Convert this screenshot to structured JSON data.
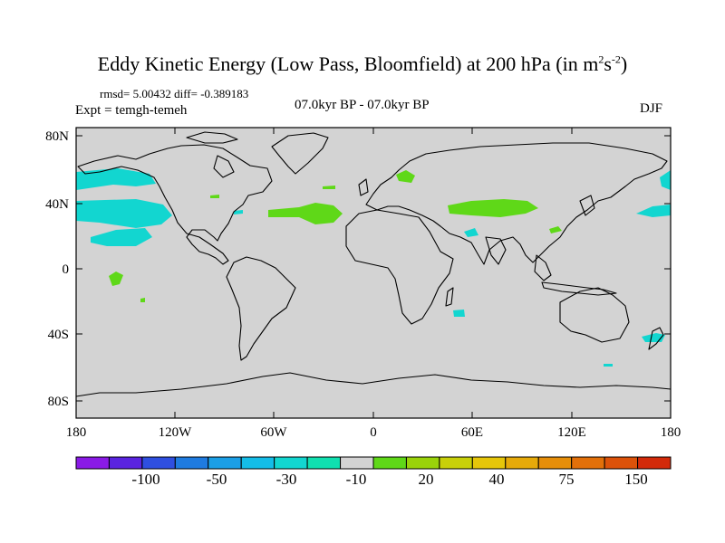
{
  "title": {
    "main": "Eddy Kinetic Energy (Low Pass, Bloomfield) at 200 hPa (in m",
    "sup1": "2",
    "mid": "s",
    "sup2": "-2",
    "end": ")"
  },
  "stats": "rmsd= 5.00432 diff= -0.389183",
  "expt": "Expt = temgh-temeh",
  "period": "07.0kyr BP - 07.0kyr BP",
  "season": "DJF",
  "y_ticks": [
    "80N",
    "40N",
    "0",
    "40S",
    "80S"
  ],
  "x_ticks": [
    "180",
    "120W",
    "60W",
    "0",
    "60E",
    "120E",
    "180"
  ],
  "colorbar": {
    "colors": [
      "#8a1ae6",
      "#5a24e0",
      "#2f4fe0",
      "#1f7be0",
      "#1b9fe6",
      "#14bde8",
      "#12d6d0",
      "#10e0b0",
      "#d3d3d3",
      "#5fd818",
      "#9ad30a",
      "#c8d00a",
      "#e6c60a",
      "#e6aa0a",
      "#e68e0a",
      "#e2700a",
      "#dc520a",
      "#d32a0a"
    ],
    "labels": [
      "-100",
      "-50",
      "-30",
      "-10",
      "20",
      "40",
      "75",
      "150"
    ]
  },
  "colors": {
    "land_bg": "#d3d3d3",
    "cyan": "#12d6d0",
    "green": "#5fd818"
  }
}
